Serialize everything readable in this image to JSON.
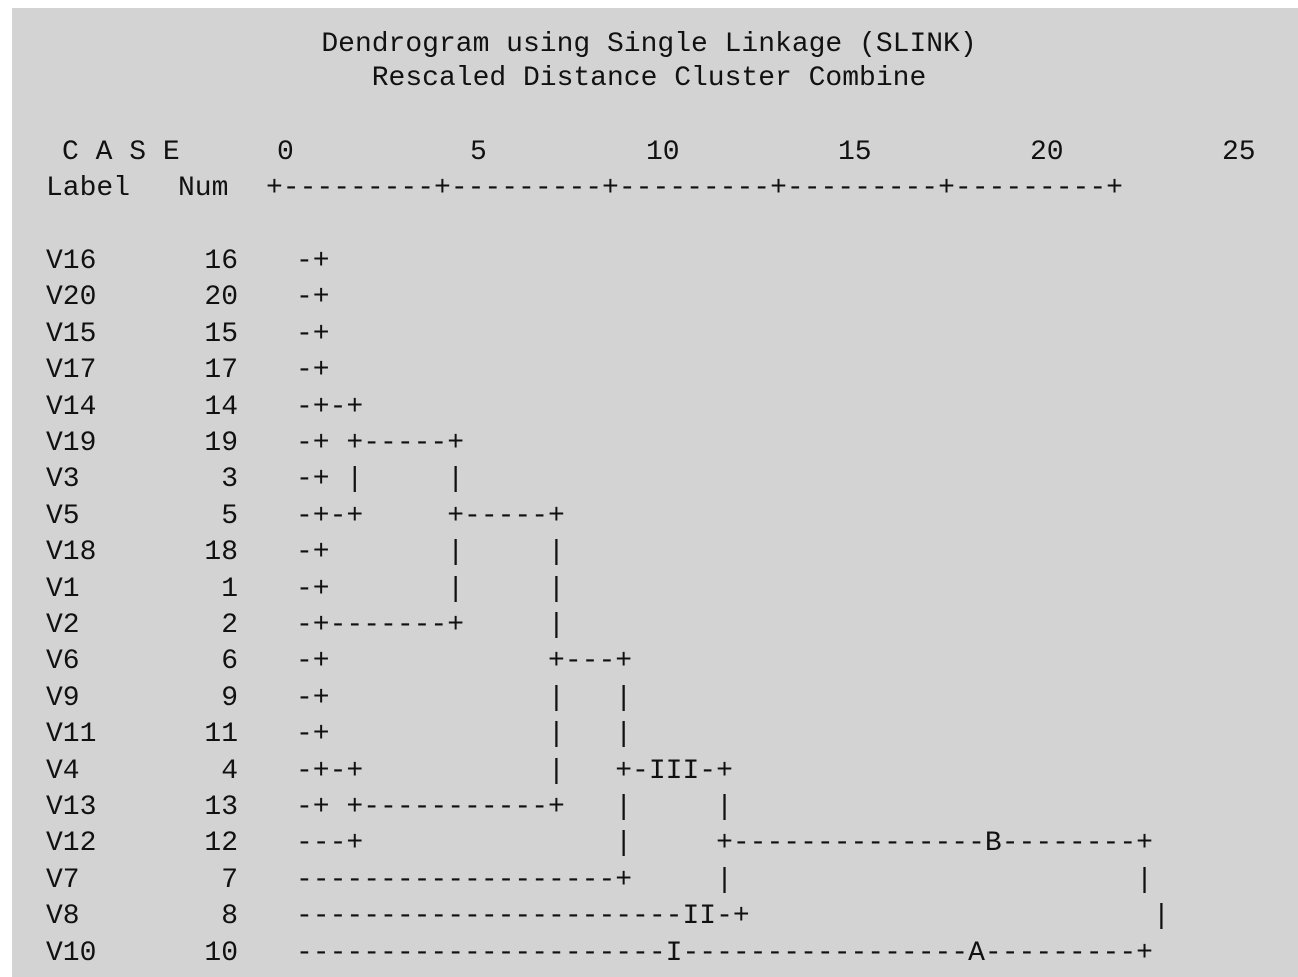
{
  "title": "Dendrogram using Single Linkage (SLINK)",
  "subtitle": "Rescaled Distance Cluster Combine",
  "header": {
    "case_label": "C A S E",
    "label_col": "Label",
    "num_col": "Num"
  },
  "scale": {
    "ticks": [
      "0",
      "5",
      "10",
      "15",
      "20",
      "25"
    ],
    "ruler": "+---------+---------+---------+---------+---------+"
  },
  "cases": [
    {
      "label": "V16",
      "num": "16",
      "tree": "-+"
    },
    {
      "label": "V20",
      "num": "20",
      "tree": "-+"
    },
    {
      "label": "V15",
      "num": "15",
      "tree": "-+"
    },
    {
      "label": "V17",
      "num": "17",
      "tree": "-+"
    },
    {
      "label": "V14",
      "num": "14",
      "tree": "-+-+"
    },
    {
      "label": "V19",
      "num": "19",
      "tree": "-+ +-----+"
    },
    {
      "label": "V3",
      "num": "3",
      "tree": "-+ |     |"
    },
    {
      "label": "V5",
      "num": "5",
      "tree": "-+-+     +-----+"
    },
    {
      "label": "V18",
      "num": "18",
      "tree": "-+       |     |"
    },
    {
      "label": "V1",
      "num": "1",
      "tree": "-+       |     |"
    },
    {
      "label": "V2",
      "num": "2",
      "tree": "-+-------+     |"
    },
    {
      "label": "V6",
      "num": "6",
      "tree": "-+             +---+"
    },
    {
      "label": "V9",
      "num": "9",
      "tree": "-+             |   |"
    },
    {
      "label": "V11",
      "num": "11",
      "tree": "-+             |   |"
    },
    {
      "label": "V4",
      "num": "4",
      "tree": "-+-+           |   +-III-+"
    },
    {
      "label": "V13",
      "num": "13",
      "tree": "-+ +-----------+   |     |"
    },
    {
      "label": "V12",
      "num": "12",
      "tree": "---+               |     +---------------B--------+"
    },
    {
      "label": "V7",
      "num": "7",
      "tree": "-------------------+     |                        |"
    },
    {
      "label": "V8",
      "num": "8",
      "tree": "-----------------------II-+                        |"
    },
    {
      "label": "V10",
      "num": "10",
      "tree": "----------------------I-----------------A---------+"
    }
  ]
}
